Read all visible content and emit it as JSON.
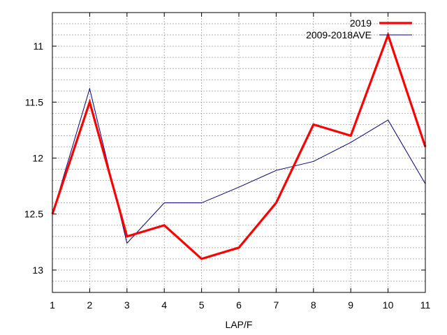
{
  "chart_data": {
    "type": "line",
    "title": "",
    "xlabel": "LAP/F",
    "ylabel": "",
    "x": [
      1,
      2,
      3,
      4,
      5,
      6,
      7,
      8,
      9,
      10,
      11
    ],
    "xlim": [
      1,
      11
    ],
    "ylim": [
      10.7,
      13.2
    ],
    "y_reversed": true,
    "x_ticks": [
      1,
      2,
      3,
      4,
      5,
      6,
      7,
      8,
      9,
      10,
      11
    ],
    "y_ticks": [
      11,
      11.5,
      12,
      12.5,
      13
    ],
    "y_tick_labels": [
      "11",
      "11.5",
      "12",
      "12.5",
      "13"
    ],
    "grid": true,
    "legend_position": "top-right",
    "series": [
      {
        "name": "2019",
        "values": [
          12.5,
          11.5,
          12.7,
          12.6,
          12.9,
          12.8,
          12.4,
          11.7,
          11.8,
          10.9,
          11.9
        ],
        "color": "#ff0000"
      },
      {
        "name": "2009-2018AVE",
        "values": [
          12.5,
          11.38,
          12.76,
          12.4,
          12.4,
          12.26,
          12.11,
          12.03,
          11.86,
          11.66,
          12.23
        ],
        "color": "#00008b"
      }
    ]
  }
}
